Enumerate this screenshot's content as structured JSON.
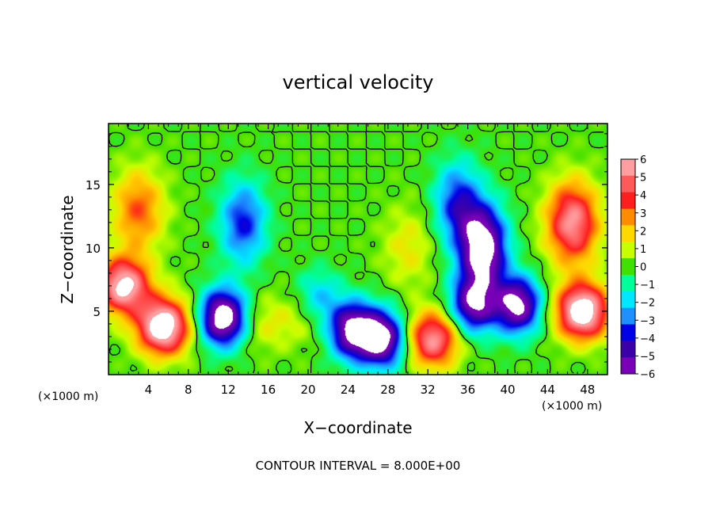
{
  "chart_data": {
    "type": "heatmap",
    "title": "vertical velocity",
    "xlabel": "X−coordinate",
    "ylabel": "Z−coordinate",
    "x_unit_label_left": "(×1000 m)",
    "x_unit_label_right": "(×1000 m)",
    "footer": "CONTOUR INTERVAL = 8.000E+00",
    "xlim": [
      0,
      50
    ],
    "ylim": [
      0,
      19.8
    ],
    "x_ticks": [
      "4",
      "8",
      "12",
      "16",
      "20",
      "24",
      "28",
      "32",
      "36",
      "40",
      "44",
      "48"
    ],
    "x_tick_values": [
      4,
      8,
      12,
      16,
      20,
      24,
      28,
      32,
      36,
      40,
      44,
      48
    ],
    "y_ticks": [
      "5",
      "10",
      "15"
    ],
    "y_tick_values": [
      5,
      10,
      15
    ],
    "colorbar": {
      "labels": [
        "6",
        "5",
        "4",
        "3",
        "2",
        "1",
        "0",
        "−1",
        "−2",
        "−3",
        "−4",
        "−5",
        "−6"
      ],
      "values": [
        6,
        5,
        4,
        3,
        2,
        1,
        0,
        -1,
        -2,
        -3,
        -4,
        -5,
        -6
      ],
      "colors": [
        "#ff9ea0",
        "#ff5a5a",
        "#ff1e1e",
        "#ff8c00",
        "#ffd800",
        "#c8ff00",
        "#40e000",
        "#00ff9a",
        "#00e8ff",
        "#1e90ff",
        "#0000e6",
        "#3c00a8",
        "#7a00b8"
      ],
      "saturation_color": "#ffffff"
    },
    "features": [
      {
        "kind": "updraft",
        "x": 5.5,
        "z": 3.8,
        "peak": 8
      },
      {
        "kind": "updraft",
        "x": 1.5,
        "z": 7,
        "peak": 7
      },
      {
        "kind": "updraft",
        "x": 32.5,
        "z": 2.8,
        "peak": 6
      },
      {
        "kind": "updraft",
        "x": 47.5,
        "z": 5,
        "peak": 8
      },
      {
        "kind": "updraft",
        "x": 46.5,
        "z": 12,
        "peak": 6
      },
      {
        "kind": "updraft",
        "x": 3,
        "z": 13,
        "peak": 3.5
      },
      {
        "kind": "updraft",
        "x": 30,
        "z": 10,
        "peak": 1.6
      },
      {
        "kind": "updraft",
        "x": 15.5,
        "z": 4,
        "peak": 1.4
      },
      {
        "kind": "updraft",
        "x": 19.5,
        "z": 4.5,
        "peak": 1.3
      },
      {
        "kind": "downdraft",
        "x": 11.5,
        "z": 4.5,
        "peak": -8
      },
      {
        "kind": "downdraft",
        "x": 13.5,
        "z": 12,
        "peak": -4
      },
      {
        "kind": "downdraft",
        "x": 24.5,
        "z": 3.5,
        "peak": -7
      },
      {
        "kind": "downdraft",
        "x": 27.5,
        "z": 2.8,
        "peak": -7
      },
      {
        "kind": "downdraft",
        "x": 37.5,
        "z": 10,
        "peak": -8
      },
      {
        "kind": "downdraft",
        "x": 36.5,
        "z": 5.5,
        "peak": -6
      },
      {
        "kind": "downdraft",
        "x": 41,
        "z": 5.5,
        "peak": -7
      },
      {
        "kind": "downdraft",
        "x": 35,
        "z": 13.5,
        "peak": -4
      },
      {
        "kind": "downdraft",
        "x": 21,
        "z": 6,
        "peak": -2.5
      }
    ]
  }
}
